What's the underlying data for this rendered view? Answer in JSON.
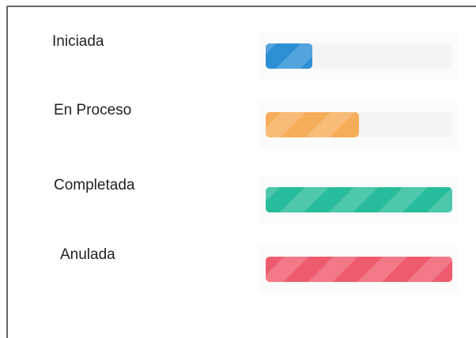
{
  "chart_data": {
    "type": "progress",
    "categories": [
      "Iniciada",
      "En Proceso",
      "Completada",
      "Anulada"
    ],
    "values": [
      25,
      50,
      100,
      100
    ],
    "colors": [
      "#2d8fd5",
      "#f6ad5a",
      "#27bc9a",
      "#ef5b6e"
    ],
    "xlim": [
      0,
      100
    ]
  }
}
